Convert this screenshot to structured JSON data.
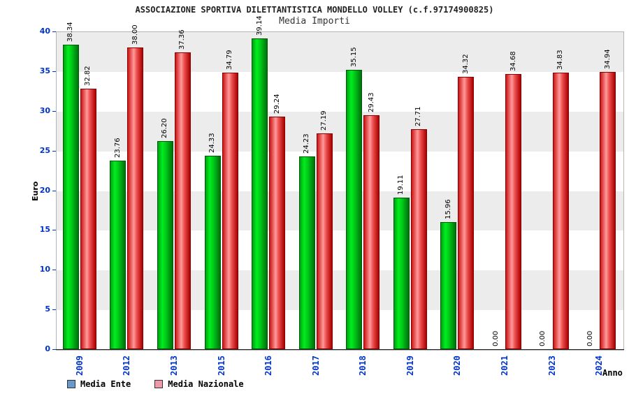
{
  "title": "ASSOCIAZIONE SPORTIVA DILETTANTISTICA MONDELLO VOLLEY (c.f.97174900825)",
  "subtitle": "Media Importi",
  "chart_data": {
    "type": "bar",
    "categories": [
      "2009",
      "2012",
      "2013",
      "2015",
      "2016",
      "2017",
      "2018",
      "2019",
      "2020",
      "2021",
      "2023",
      "2024"
    ],
    "series": [
      {
        "name": "Media Ente",
        "values": [
          38.34,
          23.76,
          26.2,
          24.33,
          39.14,
          24.23,
          35.15,
          19.11,
          15.96,
          0.0,
          0.0,
          0.0
        ]
      },
      {
        "name": "Media Nazionale",
        "values": [
          32.82,
          38.0,
          37.36,
          34.79,
          29.24,
          27.19,
          29.43,
          27.71,
          34.32,
          34.68,
          34.83,
          34.94
        ]
      }
    ],
    "xlabel": "Anno",
    "ylabel": "Euro",
    "ylim": [
      0,
      40
    ],
    "yticks": [
      0,
      5,
      10,
      15,
      20,
      25,
      30,
      35,
      40
    ],
    "value_label_rotation": 90,
    "x_label_rotation": 90,
    "grid": "alternating-horizontal-bands",
    "legend_position": "bottom"
  },
  "colors": {
    "axis_text": "#0033cc",
    "value_text": "#000000",
    "band_gray": "#ececec",
    "band_white": "#ffffff",
    "bar_ente_gradient": [
      "#00a012",
      "#00ee1e",
      "#00c818",
      "#00700c"
    ],
    "bar_ente_border": "#005a08",
    "bar_nazionale_gradient": [
      "#cc1414",
      "#ff9b9b",
      "#ee5050",
      "#aa0000"
    ],
    "bar_nazionale_border": "#8b0000",
    "legend_ente": "#6699cc",
    "legend_nazionale": "#ee99aa"
  }
}
